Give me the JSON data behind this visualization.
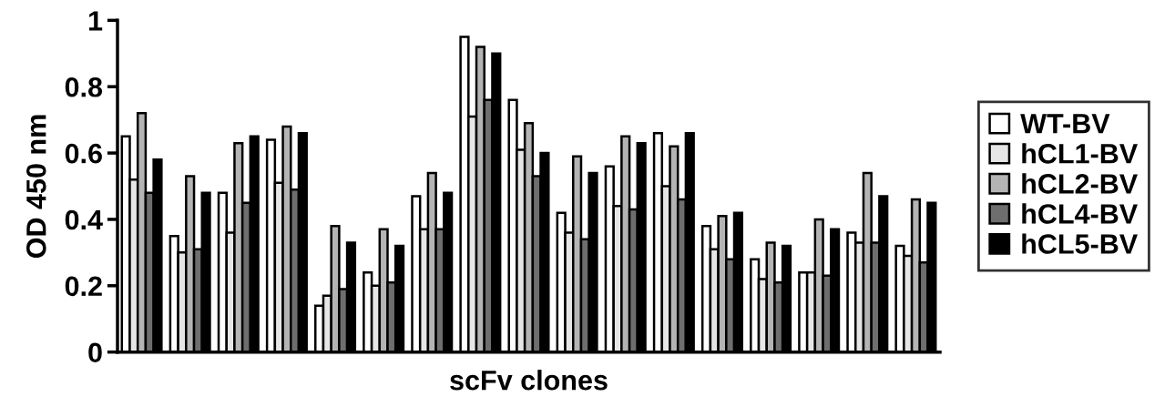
{
  "chart_data": {
    "type": "bar",
    "xlabel": "scFv clones",
    "ylabel": "OD 450 nm",
    "categories": [
      null,
      null,
      null,
      null,
      null,
      null,
      null,
      null,
      null,
      null,
      null,
      null,
      null,
      null,
      null,
      null,
      null
    ],
    "series": [
      {
        "name": "WT-BV",
        "color": "#ffffff",
        "values": [
          0.65,
          0.35,
          0.48,
          0.64,
          0.14,
          0.24,
          0.47,
          0.95,
          0.76,
          0.42,
          0.56,
          0.66,
          0.38,
          0.28,
          0.24,
          0.36,
          0.32
        ]
      },
      {
        "name": "hCL1-BV",
        "color": "#e6e6e6",
        "values": [
          0.52,
          0.3,
          0.36,
          0.51,
          0.17,
          0.2,
          0.37,
          0.71,
          0.61,
          0.36,
          0.44,
          0.5,
          0.31,
          0.22,
          0.24,
          0.33,
          0.29
        ]
      },
      {
        "name": "hCL2-BV",
        "color": "#b4b4b4",
        "values": [
          0.72,
          0.53,
          0.63,
          0.68,
          0.38,
          0.37,
          0.54,
          0.92,
          0.69,
          0.59,
          0.65,
          0.62,
          0.41,
          0.33,
          0.4,
          0.54,
          0.46
        ]
      },
      {
        "name": "hCL4-BV",
        "color": "#6e6e6e",
        "values": [
          0.48,
          0.31,
          0.45,
          0.49,
          0.19,
          0.21,
          0.37,
          0.76,
          0.53,
          0.34,
          0.43,
          0.46,
          0.28,
          0.21,
          0.23,
          0.33,
          0.27
        ]
      },
      {
        "name": "hCL5-BV",
        "color": "#000000",
        "values": [
          0.58,
          0.48,
          0.65,
          0.66,
          0.33,
          0.32,
          0.48,
          0.9,
          0.6,
          0.54,
          0.63,
          0.66,
          0.42,
          0.32,
          0.37,
          0.47,
          0.45
        ]
      }
    ],
    "ylim": [
      0,
      1
    ],
    "yticks": [
      0,
      0.2,
      0.4,
      0.6,
      0.8,
      1
    ],
    "tick_labels": "y",
    "grid": false,
    "legend": "right"
  }
}
